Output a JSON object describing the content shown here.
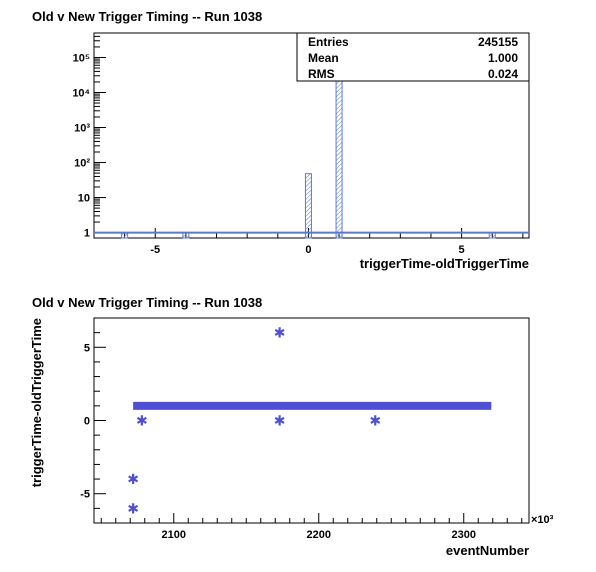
{
  "chart_data": [
    {
      "type": "bar",
      "title": "Old v New Trigger Timing -- Run 1038",
      "xlabel": "triggerTime-oldTriggerTime",
      "ylabel": "",
      "xlim": [
        -7,
        7.2
      ],
      "ylim": [
        0.7,
        500000
      ],
      "yscale": "log",
      "grid": false,
      "legend": "none",
      "x_ticks": [
        -5,
        0,
        5
      ],
      "x_tick_labels": [
        "-5",
        "0",
        "5"
      ],
      "y_ticks": [
        1,
        10,
        100,
        1000,
        10000,
        100000
      ],
      "y_tick_labels": [
        "1",
        "10",
        "10²",
        "10³",
        "10⁴",
        "10⁵"
      ],
      "bins": [
        {
          "x": -6,
          "count": 1
        },
        {
          "x": -4,
          "count": 1
        },
        {
          "x": 0,
          "count": 48
        },
        {
          "x": 1,
          "count": 245104
        },
        {
          "x": 6,
          "count": 1
        }
      ],
      "stats": {
        "entries_label": "Entries",
        "entries": "245155",
        "mean_label": "Mean",
        "mean": "1.000",
        "rms_label": "RMS",
        "rms": "0.024"
      },
      "colors": {
        "bar": "#5b7bc8",
        "axis": "#000000"
      }
    },
    {
      "type": "scatter",
      "title": "Old v New Trigger Timing -- Run 1038",
      "xlabel": "eventNumber",
      "ylabel": "triggerTime-oldTriggerTime",
      "x_exponent_label": "×10³",
      "xlim": [
        2045,
        2345
      ],
      "ylim": [
        -7,
        7
      ],
      "grid": false,
      "legend": "none",
      "x_ticks": [
        2100,
        2200,
        2300
      ],
      "x_tick_labels": [
        "2100",
        "2200",
        "2300"
      ],
      "y_ticks": [
        -5,
        0,
        5
      ],
      "y_tick_labels": [
        "-5",
        "0",
        "5"
      ],
      "band": {
        "x_start": 2072,
        "x_end": 2319,
        "y": 1
      },
      "points": [
        {
          "x": 2072,
          "y": -4
        },
        {
          "x": 2072,
          "y": -6
        },
        {
          "x": 2078,
          "y": 0
        },
        {
          "x": 2173,
          "y": 6
        },
        {
          "x": 2173,
          "y": 0
        },
        {
          "x": 2239,
          "y": 0
        }
      ],
      "colors": {
        "marker": "#4f4fd6",
        "axis": "#000000"
      }
    }
  ]
}
